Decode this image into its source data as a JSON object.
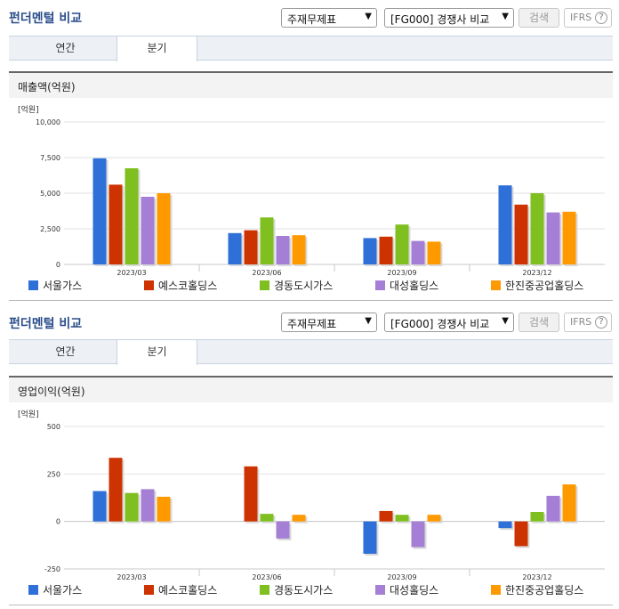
{
  "panels": [
    {
      "title": "펀더멘털 비교",
      "select1": "주재무제표",
      "select2": "[FG000] 경쟁사 비교",
      "search_label": "검색",
      "ifrs_label": "IFRS",
      "help_icon": "?",
      "tabs": [
        "연간",
        "분기"
      ],
      "active_tab": 1,
      "chart_title": "매출액(억원)",
      "unit": "[억원]"
    },
    {
      "title": "펀더멘털 비교",
      "select1": "주재무제표",
      "select2": "[FG000] 경쟁사 비교",
      "search_label": "검색",
      "ifrs_label": "IFRS",
      "help_icon": "?",
      "tabs": [
        "연간",
        "분기"
      ],
      "active_tab": 1,
      "chart_title": "영업이익(억원)",
      "unit": "[억원]"
    }
  ],
  "colors": {
    "서울가스": "#2e6fd8",
    "예스코홀딩스": "#cc3300",
    "경동도시가스": "#7fbf1f",
    "대성홀딩스": "#a57fd6",
    "한진중공업홀딩스": "#ff9900"
  },
  "chart_data": [
    {
      "type": "bar",
      "categories": [
        "2023/03",
        "2023/06",
        "2023/09",
        "2023/12"
      ],
      "ylim": [
        0,
        10000
      ],
      "yticks": [
        "0",
        "2,500",
        "5,000",
        "7,500",
        "10,000"
      ],
      "ytick_values": [
        0,
        2500,
        5000,
        7500,
        10000
      ],
      "series": [
        {
          "name": "서울가스",
          "values": [
            7450,
            2200,
            1850,
            5550
          ]
        },
        {
          "name": "예스코홀딩스",
          "values": [
            5600,
            2400,
            1950,
            4200
          ]
        },
        {
          "name": "경동도시가스",
          "values": [
            6750,
            3300,
            2800,
            5000
          ]
        },
        {
          "name": "대성홀딩스",
          "values": [
            4750,
            2000,
            1650,
            3650
          ]
        },
        {
          "name": "한진중공업홀딩스",
          "values": [
            5000,
            2050,
            1600,
            3700
          ]
        }
      ]
    },
    {
      "type": "bar",
      "categories": [
        "2023/03",
        "2023/06",
        "2023/09",
        "2023/12"
      ],
      "ylim": [
        -250,
        500
      ],
      "yticks": [
        "-250",
        "0",
        "250",
        "500"
      ],
      "ytick_values": [
        -250,
        0,
        250,
        500
      ],
      "series": [
        {
          "name": "서울가스",
          "values": [
            160,
            0,
            -170,
            -35
          ]
        },
        {
          "name": "예스코홀딩스",
          "values": [
            335,
            290,
            55,
            -130
          ]
        },
        {
          "name": "경동도시가스",
          "values": [
            150,
            40,
            35,
            50
          ]
        },
        {
          "name": "대성홀딩스",
          "values": [
            170,
            -90,
            -135,
            135
          ]
        },
        {
          "name": "한진중공업홀딩스",
          "values": [
            130,
            35,
            35,
            195
          ]
        }
      ]
    }
  ]
}
